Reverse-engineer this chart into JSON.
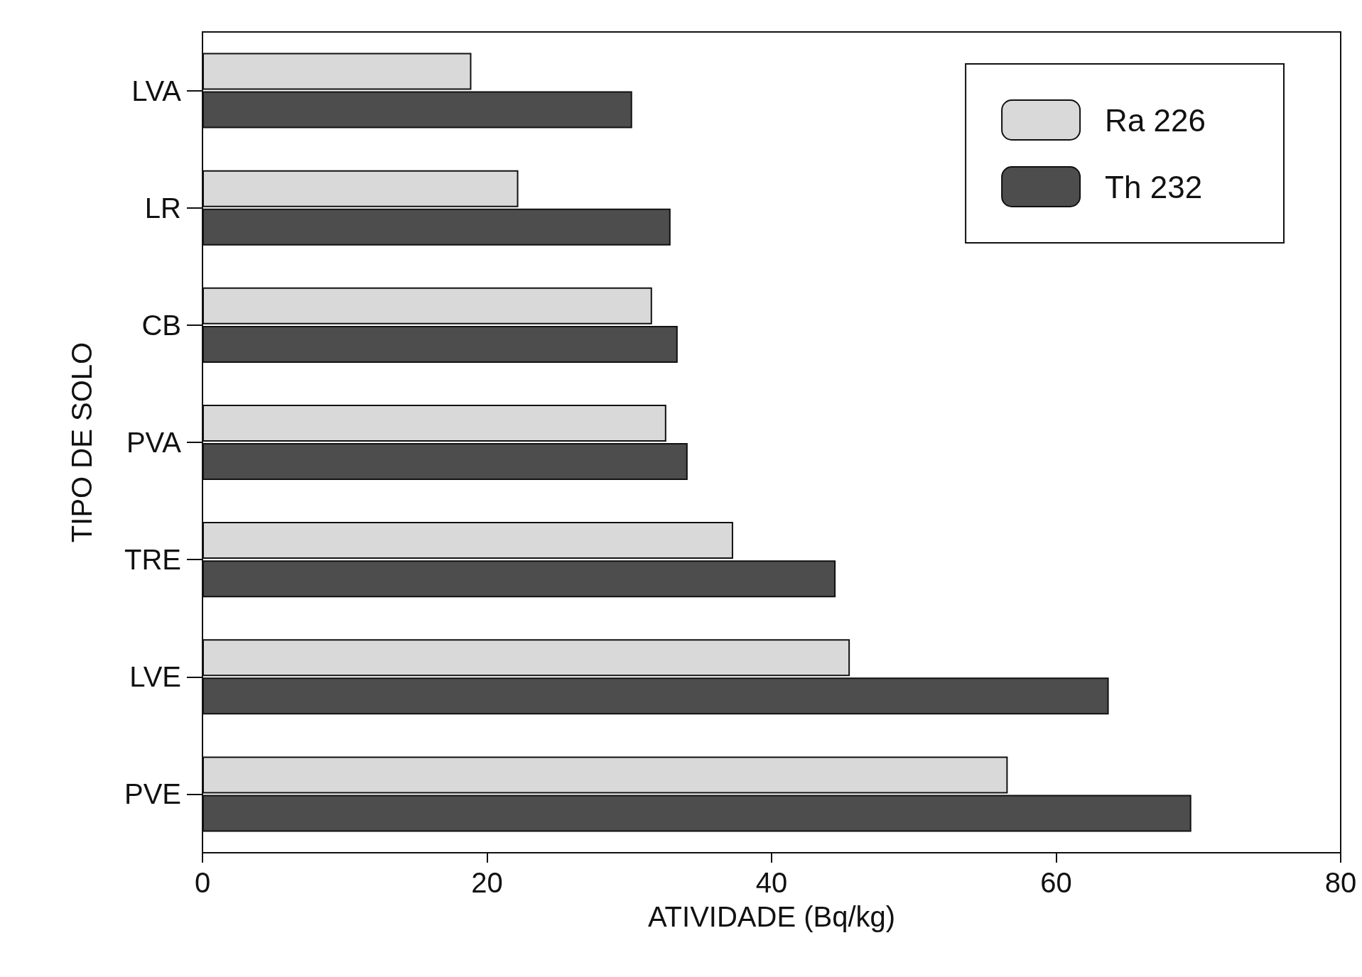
{
  "chart_data": {
    "type": "bar",
    "orientation": "horizontal",
    "xlabel": "ATIVIDADE (Bq/kg)",
    "ylabel": "TIPO DE SOLO",
    "categories": [
      "LVA",
      "LR",
      "CB",
      "PVA",
      "TRE",
      "LVE",
      "PVE"
    ],
    "series": [
      {
        "name": "Ra 226",
        "color": "#d9d9d9",
        "values": [
          18.9,
          22.2,
          31.6,
          32.6,
          37.3,
          45.5,
          56.6
        ]
      },
      {
        "name": "Th 232",
        "color": "#4d4d4d",
        "values": [
          30.2,
          32.9,
          33.4,
          34.1,
          44.5,
          63.7,
          69.5
        ]
      }
    ],
    "xlim": [
      0,
      80
    ],
    "xticks": [
      0,
      20,
      40,
      60,
      80
    ],
    "grid": false,
    "legend": "top right"
  }
}
